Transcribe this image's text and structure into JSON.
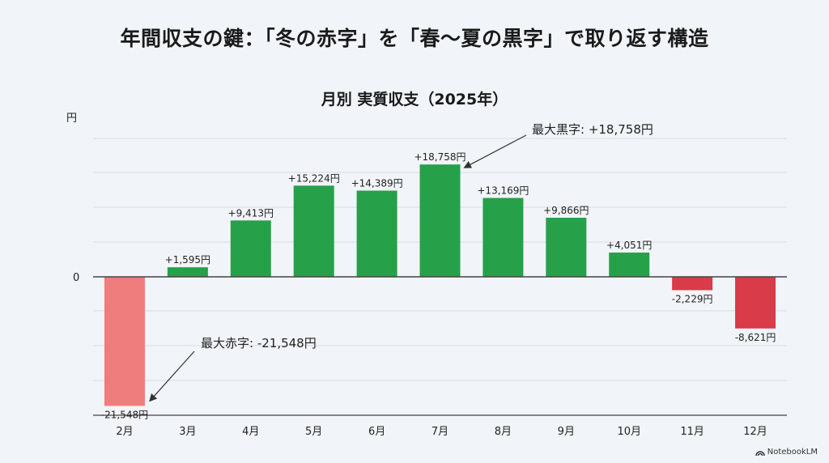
{
  "title": "年間収支の鍵：「冬の赤字」を「春〜夏の黒字」で取り返す構造",
  "chart_data": {
    "type": "bar",
    "title": "月別 実質収支（2025年）",
    "ylabel": "円",
    "y_tick_labels": [
      "0"
    ],
    "categories": [
      "2月",
      "3月",
      "4月",
      "5月",
      "6月",
      "7月",
      "8月",
      "9月",
      "10月",
      "11月",
      "12月"
    ],
    "values": [
      -21548,
      1595,
      9413,
      15224,
      14389,
      18758,
      13169,
      9866,
      4051,
      -2229,
      -8621
    ],
    "data_labels": [
      "-21,548円",
      "+1,595円",
      "+9,413円",
      "+15,224円",
      "+14,389円",
      "+18,758円",
      "+13,169円",
      "+9,866円",
      "+4,051円",
      "-2,229円",
      "-8,621円"
    ],
    "grid": true,
    "colors": {
      "positive": "#27a04a",
      "negative": "#d93b48",
      "max_deficit": "#ef7d7d"
    },
    "annotations": [
      {
        "text": "最大黒字: +18,758円",
        "target": "7月"
      },
      {
        "text": "最大赤字: -21,548円",
        "target": "2月"
      }
    ]
  },
  "branding": {
    "logo_text": "NotebookLM",
    "icon": "notebooklm-logo-icon"
  }
}
